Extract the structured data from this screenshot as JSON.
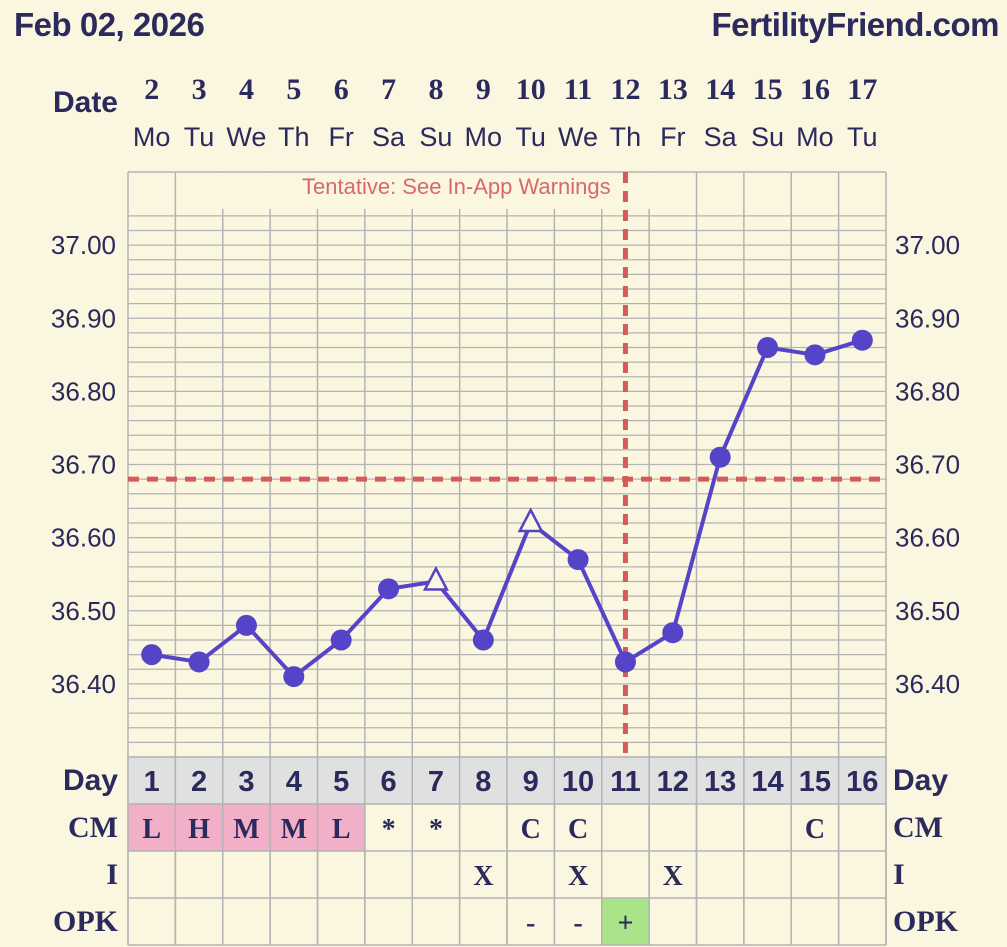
{
  "header": {
    "date": "Feb 02, 2026",
    "site": "FertilityFriend.com"
  },
  "colors": {
    "background": "#fbf6df",
    "grid": "#b3b3b3",
    "line": "#5644c8",
    "coverline": "#d75a5a",
    "text": "#2b2a5c",
    "day_row_bg": "#e0e0e0",
    "cm_pink": "#f1afc8",
    "opk_positive": "#a9e38a"
  },
  "chart_data": {
    "type": "line",
    "title": "",
    "xlabel": "Date",
    "ylabel": "",
    "dates": [
      "2",
      "3",
      "4",
      "5",
      "6",
      "7",
      "8",
      "9",
      "10",
      "11",
      "12",
      "13",
      "14",
      "15",
      "16",
      "17"
    ],
    "weekdays": [
      "Mo",
      "Tu",
      "We",
      "Th",
      "Fr",
      "Sa",
      "Su",
      "Mo",
      "Tu",
      "We",
      "Th",
      "Fr",
      "Sa",
      "Su",
      "Mo",
      "Tu"
    ],
    "days": [
      "1",
      "2",
      "3",
      "4",
      "5",
      "6",
      "7",
      "8",
      "9",
      "10",
      "11",
      "12",
      "13",
      "14",
      "15",
      "16"
    ],
    "series": [
      {
        "values": [
          36.44,
          36.43,
          36.48,
          36.41,
          36.46,
          36.53,
          36.54,
          36.46,
          36.62,
          36.57,
          36.43,
          36.47,
          36.71,
          36.86,
          36.85,
          36.87
        ],
        "markers": [
          "circle",
          "circle",
          "circle",
          "circle",
          "circle",
          "circle",
          "triangle",
          "circle",
          "triangle",
          "circle",
          "circle",
          "circle",
          "circle",
          "circle",
          "circle",
          "circle"
        ]
      }
    ],
    "y_ticks": [
      "37.00",
      "36.90",
      "36.80",
      "36.70",
      "36.60",
      "36.50",
      "36.40"
    ],
    "ylim": [
      36.3,
      37.1
    ],
    "coverline": 36.68,
    "ovulation_day": "12",
    "annotation": "Tentative: See In-App Warnings",
    "rows": {
      "day_label": "Day",
      "cm_label": "CM",
      "i_label": "I",
      "opk_label": "OPK",
      "cm": [
        "L",
        "H",
        "M",
        "M",
        "L",
        "*",
        "*",
        "",
        "C",
        "C",
        "",
        "",
        "",
        "",
        "C",
        ""
      ],
      "cm_highlight": [
        true,
        true,
        true,
        true,
        true,
        false,
        false,
        false,
        false,
        false,
        false,
        false,
        false,
        false,
        false,
        false
      ],
      "intercourse": [
        "",
        "",
        "",
        "",
        "",
        "",
        "",
        "X",
        "",
        "X",
        "",
        "X",
        "",
        "",
        "",
        ""
      ],
      "opk": [
        "",
        "",
        "",
        "",
        "",
        "",
        "",
        "",
        "-",
        "-",
        "+",
        "",
        "",
        "",
        "",
        ""
      ],
      "opk_highlight": [
        false,
        false,
        false,
        false,
        false,
        false,
        false,
        false,
        false,
        false,
        true,
        false,
        false,
        false,
        false,
        false
      ]
    }
  }
}
